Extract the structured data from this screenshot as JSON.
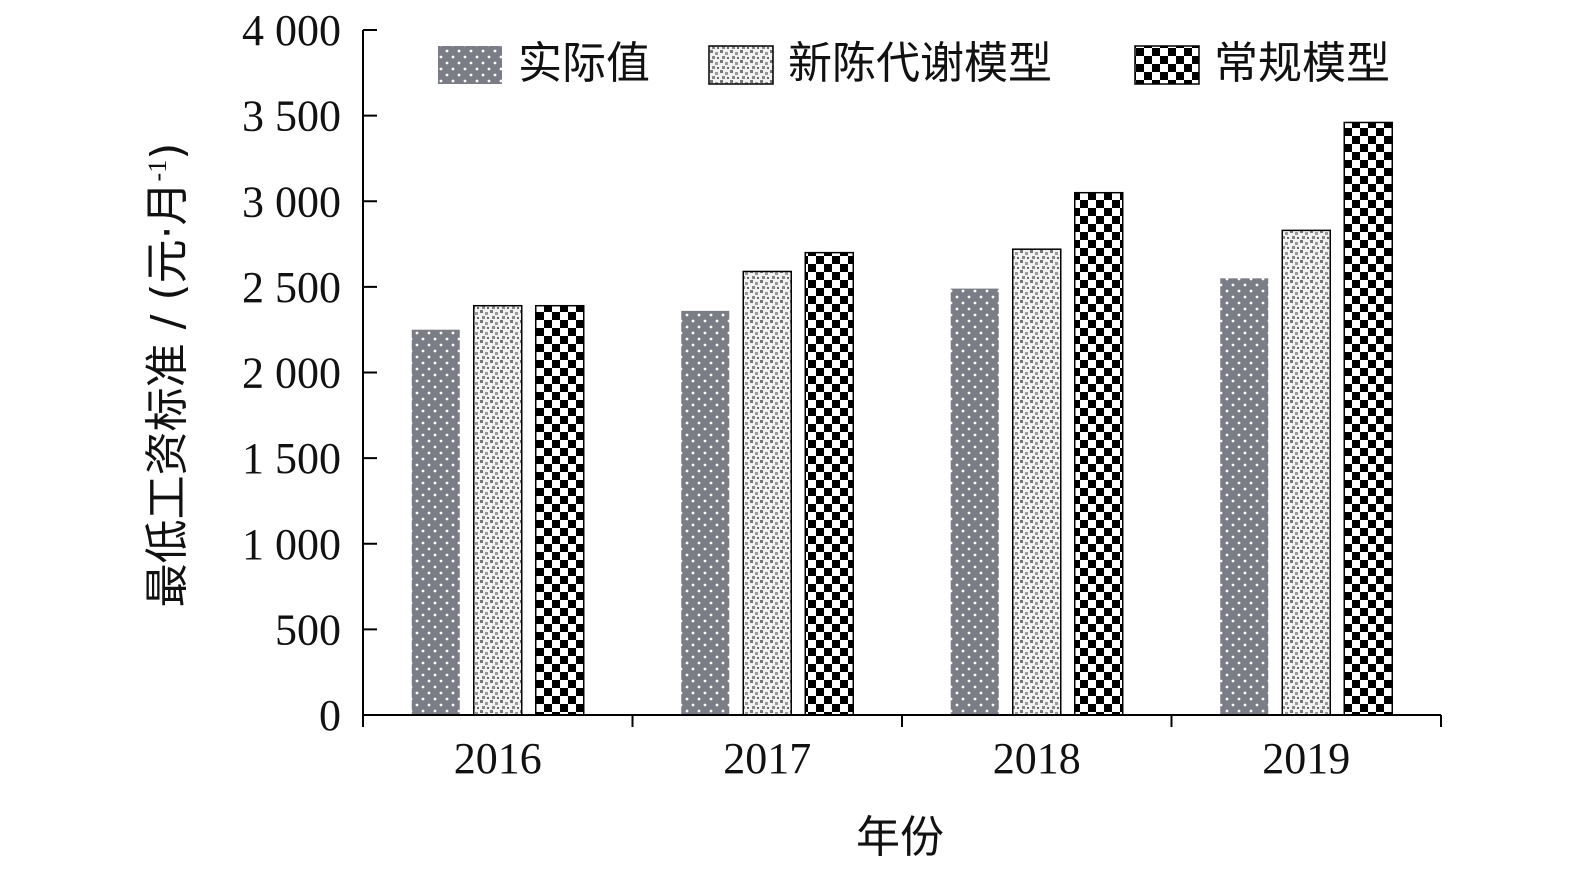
{
  "chart_data": {
    "type": "bar",
    "title": "",
    "xlabel": "年份",
    "ylabel": "最低工资标准 / (元·月",
    "ylabel_sup": "-1",
    "ylabel_close": ")",
    "ylim": [
      0,
      4000
    ],
    "yticks": [
      0,
      500,
      1000,
      1500,
      2000,
      2500,
      3000,
      3500,
      4000
    ],
    "ytick_labels": [
      "0",
      "500",
      "1 000",
      "1 500",
      "2 000",
      "2 500",
      "3 000",
      "3 500",
      "4 000"
    ],
    "categories": [
      "2016",
      "2017",
      "2018",
      "2019"
    ],
    "legend_position": "top",
    "grid": false,
    "series": [
      {
        "name": "实际值",
        "values": [
          2250,
          2360,
          2490,
          2550
        ],
        "pattern": "dots",
        "fill": "#7a7d85"
      },
      {
        "name": "新陈代谢模型",
        "values": [
          2390,
          2590,
          2720,
          2830
        ],
        "pattern": "speckle",
        "fill": "#c8c8c8"
      },
      {
        "name": "常规模型",
        "values": [
          2390,
          2700,
          3050,
          3460
        ],
        "pattern": "checker",
        "fill": "#000000"
      }
    ]
  }
}
